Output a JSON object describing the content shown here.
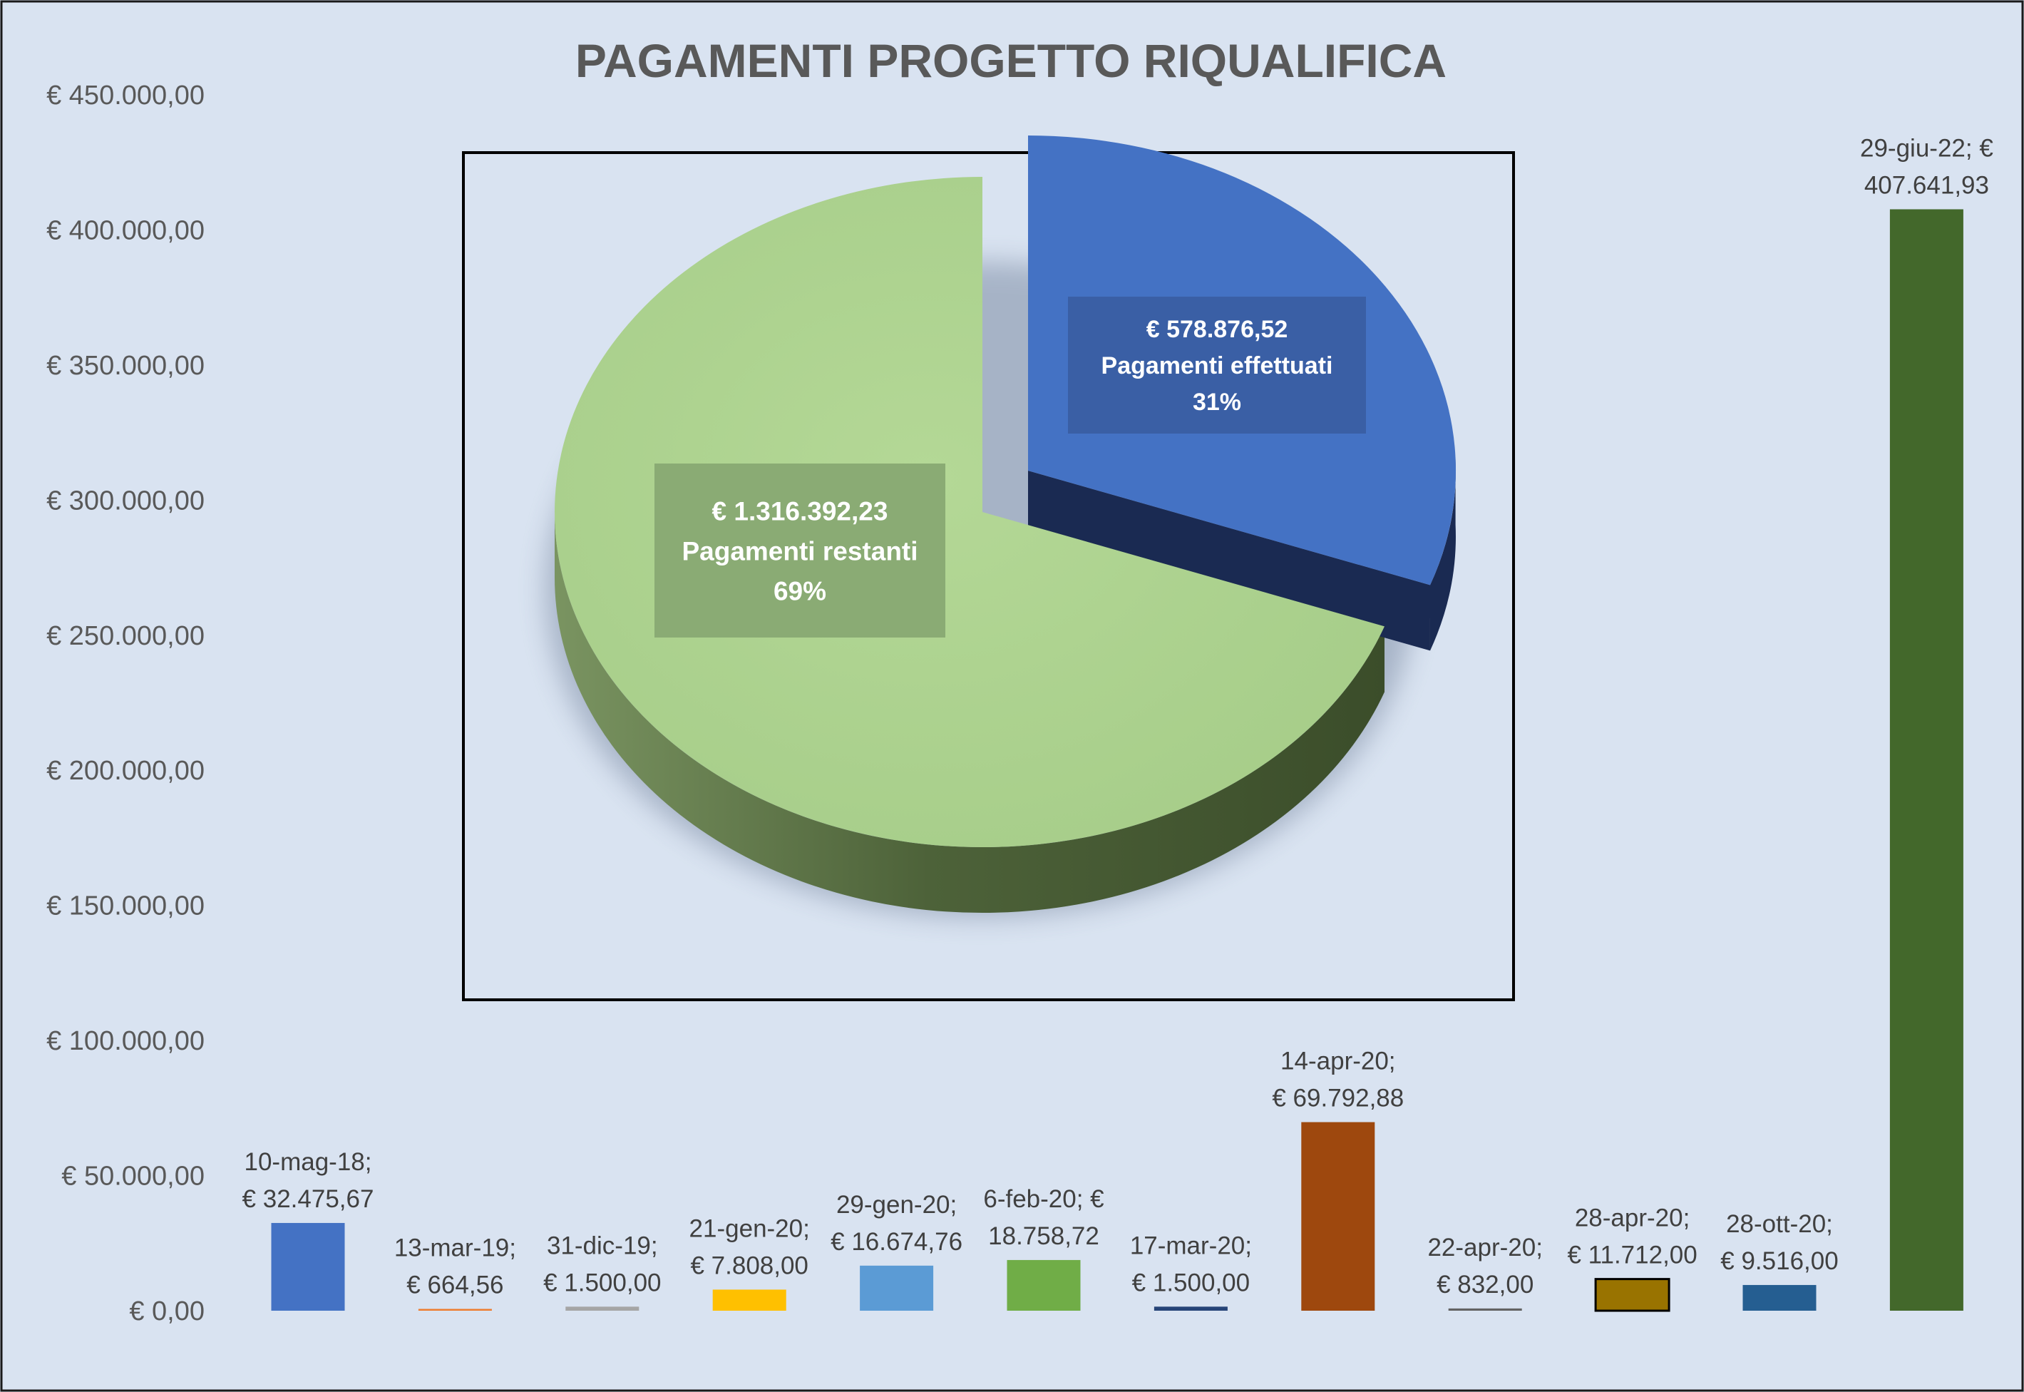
{
  "chart_data": [
    {
      "type": "bar",
      "title": "PAGAMENTI PROGETTO RIQUALIFICA",
      "xlabel": "",
      "ylabel": "",
      "ylim": [
        0,
        450000
      ],
      "yticks": [
        {
          "value": 0,
          "label": "€ 0,00"
        },
        {
          "value": 50000,
          "label": "€ 50.000,00"
        },
        {
          "value": 100000,
          "label": "€ 100.000,00"
        },
        {
          "value": 150000,
          "label": "€ 150.000,00"
        },
        {
          "value": 200000,
          "label": "€ 200.000,00"
        },
        {
          "value": 250000,
          "label": "€ 250.000,00"
        },
        {
          "value": 300000,
          "label": "€ 300.000,00"
        },
        {
          "value": 350000,
          "label": "€ 350.000,00"
        },
        {
          "value": 400000,
          "label": "€ 400.000,00"
        },
        {
          "value": 450000,
          "label": "€ 450.000,00"
        }
      ],
      "grid": false,
      "bars": [
        {
          "category": "10-mag-18",
          "value": 32475.67,
          "label_lines": [
            "10-mag-18;",
            "€ 32.475,67"
          ],
          "color": "#4472c4"
        },
        {
          "category": "13-mar-19",
          "value": 664.56,
          "label_lines": [
            "13-mar-19;",
            "€ 664,56"
          ],
          "color": "#ed7d31"
        },
        {
          "category": "31-dic-19",
          "value": 1500.0,
          "label_lines": [
            "31-dic-19;",
            "€ 1.500,00"
          ],
          "color": "#a5a5a5"
        },
        {
          "category": "21-gen-20",
          "value": 7808.0,
          "label_lines": [
            "21-gen-20;",
            "€ 7.808,00"
          ],
          "color": "#ffc000"
        },
        {
          "category": "29-gen-20",
          "value": 16674.76,
          "label_lines": [
            "29-gen-20;",
            "€ 16.674,76"
          ],
          "color": "#5b9bd5"
        },
        {
          "category": "6-feb-20",
          "value": 18758.72,
          "label_lines": [
            "6-feb-20; €",
            "18.758,72"
          ],
          "color": "#70ad47"
        },
        {
          "category": "17-mar-20",
          "value": 1500.0,
          "label_lines": [
            "17-mar-20;",
            "€ 1.500,00"
          ],
          "color": "#264478"
        },
        {
          "category": "14-apr-20",
          "value": 69792.88,
          "label_lines": [
            "14-apr-20;",
            "€ 69.792,88"
          ],
          "color": "#9e480e"
        },
        {
          "category": "22-apr-20",
          "value": 832.0,
          "label_lines": [
            "22-apr-20;",
            "€ 832,00"
          ],
          "color": "#636363"
        },
        {
          "category": "28-apr-20",
          "value": 11712.0,
          "label_lines": [
            "28-apr-20;",
            "€ 11.712,00"
          ],
          "color": "#997300"
        },
        {
          "category": "28-ott-20",
          "value": 9516.0,
          "label_lines": [
            "28-ott-20;",
            "€ 9.516,00"
          ],
          "color": "#255e91"
        },
        {
          "category": "29-giu-22",
          "value": 407641.93,
          "label_lines": [
            "29-giu-22; €",
            "407.641,93"
          ],
          "color": "#43682b"
        }
      ]
    },
    {
      "type": "pie",
      "style": "3d-exploded",
      "slices": [
        {
          "name": "Pagamenti effettuati",
          "value": 578876.52,
          "percent": 31,
          "label_lines": [
            "€ 578.876,52",
            "Pagamenti effettuati",
            "31%"
          ],
          "color": "#4472c4",
          "side_color": "#1a2a52"
        },
        {
          "name": "Pagamenti restanti",
          "value": 1316392.23,
          "percent": 69,
          "label_lines": [
            "€ 1.316.392,23",
            "Pagamenti restanti",
            "69%"
          ],
          "color": "#a9d18e",
          "side_color": "#4e6338"
        }
      ]
    }
  ]
}
